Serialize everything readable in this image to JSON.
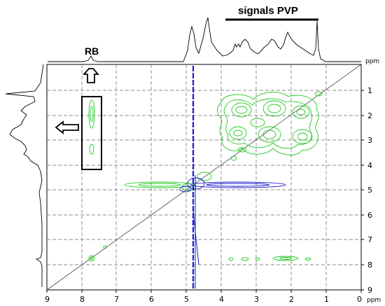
{
  "chart_data": {
    "type": "2D NMR contour plot (NOESY)",
    "xlabel": "ppm",
    "ylabel": "ppm",
    "xlim": [
      9,
      0
    ],
    "ylim": [
      0,
      9
    ],
    "x_ticks": [
      "9",
      "8",
      "7",
      "6",
      "5",
      "4",
      "3",
      "2",
      "1",
      "0"
    ],
    "y_ticks": [
      "1",
      "2",
      "3",
      "4",
      "5",
      "6",
      "7",
      "8",
      "9"
    ],
    "grid": true,
    "diagonal": true,
    "annotations": {
      "rb_label": "RB",
      "pvp_label": "signals PVP"
    },
    "colors": {
      "positive_contours": "#22cc22",
      "negative_contours": "#1a1acc",
      "axis": "#000000",
      "grid": "#555555"
    },
    "cross_peak_regions": [
      {
        "x": 2.6,
        "y": 2.6,
        "note": "PVP aliphatic cluster"
      },
      {
        "x": 7.75,
        "y": 1.95,
        "note": "RB–PVP cross peak"
      },
      {
        "x": 7.75,
        "y": 3.45,
        "note": "RB–PVP cross peak"
      },
      {
        "x": 2.0,
        "y": 7.8,
        "note": "PVP row at RB shift"
      }
    ],
    "solvent_line_ppm": 4.8
  }
}
